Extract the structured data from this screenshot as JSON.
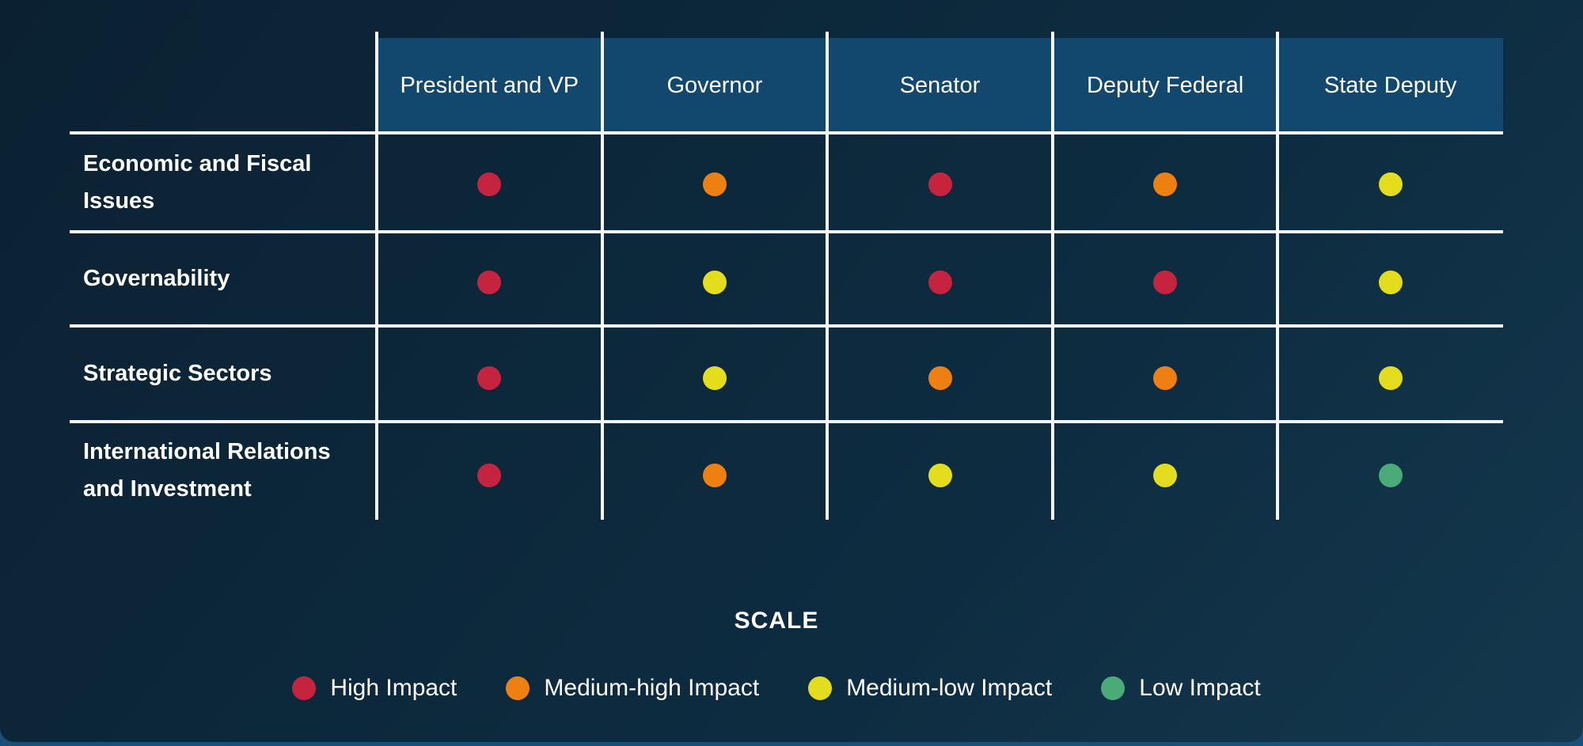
{
  "style": {
    "panel_bg_dark": "#0d2a3e",
    "bottom_strip_color": "#175179",
    "header_band_color": "#12486d",
    "grid_line_color": "#f4f6f5",
    "text_color": "#ffffff"
  },
  "chart_data": {
    "type": "heatmap",
    "columns": [
      "President and VP",
      "Governor",
      "Senator",
      "Deputy Federal",
      "State Deputy"
    ],
    "rows": [
      "Economic and Fiscal Issues",
      "Governability",
      "Strategic Sectors",
      "International Relations and Investment"
    ],
    "values": [
      [
        "high",
        "medium-high",
        "high",
        "medium-high",
        "medium-low"
      ],
      [
        "high",
        "medium-low",
        "high",
        "high",
        "medium-low"
      ],
      [
        "high",
        "medium-low",
        "medium-high",
        "medium-high",
        "medium-low"
      ],
      [
        "high",
        "medium-high",
        "medium-low",
        "medium-low",
        "low"
      ]
    ],
    "levels": {
      "high": {
        "label": "High Impact",
        "color": "#c6243e"
      },
      "medium-high": {
        "label": "Medium-high Impact",
        "color": "#ee7f11"
      },
      "medium-low": {
        "label": "Medium-low Impact",
        "color": "#e3dd1e"
      },
      "low": {
        "label": "Low Impact",
        "color": "#4aab79"
      }
    },
    "legend_title": "SCALE",
    "legend_order": [
      "high",
      "medium-high",
      "medium-low",
      "low"
    ],
    "legend_position": "bottom-center",
    "grid": true
  }
}
